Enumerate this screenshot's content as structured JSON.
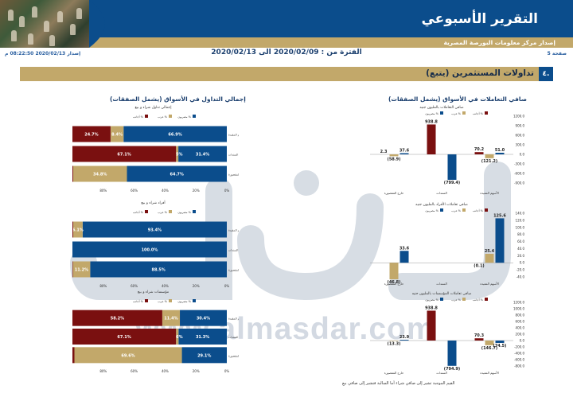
{
  "header": {
    "title": "التقرير الأسبوعي",
    "subtitle": "إصدار مركز معلومات البورصة المصرية",
    "page": "صفحة 5",
    "issue": "إصدار 2020/02/13 08:22:50 م",
    "period": "الفترة من : 2020/02/09 الى 2020/02/13"
  },
  "section": {
    "number": "٤.",
    "title": "تداولات المستثمرين (يتبع)"
  },
  "right_column_title": "صافي التعاملات في الأسواق (يشمل الصفقات)",
  "left_column_title": "إجمالي التداول في الأسواق (يشمل الصفقات)",
  "watermark": {
    "url": "www.almasdar.com"
  },
  "footnote": "القيم الموجبة تشير إلى صافي شراء أما السالبة فتشير إلى صافي بيع",
  "colors": {
    "egyptian": "#0b4d8c",
    "arab": "#c2a86a",
    "foreign": "#7a1010"
  },
  "chart_data": [
    {
      "type": "bar",
      "title": "إجمالي تداول شراء و بيع",
      "orientation": "horizontal-stacked",
      "legend": [
        "أجانب %",
        "عرب %",
        "مصريون %"
      ],
      "categories": [
        "الأسهم المقيدة",
        "السندات",
        "خارج المقصورة"
      ],
      "series": [
        {
          "name": "مصريون %",
          "values": [
            66.9,
            31.4,
            64.7
          ]
        },
        {
          "name": "عرب %",
          "values": [
            8.4,
            1.5,
            34.8
          ]
        },
        {
          "name": "أجانب %",
          "values": [
            24.7,
            67.1,
            0.5
          ]
        }
      ],
      "labels": [
        [
          "66.9%",
          "8.4%",
          "24.7%"
        ],
        [
          "31.4%",
          "1.5%",
          "67.1%"
        ],
        [
          "64.7%",
          "34.8%",
          ""
        ]
      ],
      "xticks": [
        "0%",
        "20%",
        "40%",
        "60%",
        "80%"
      ]
    },
    {
      "type": "bar",
      "title": "أفراد شراء و بيع",
      "orientation": "horizontal-stacked",
      "legend": [
        "أجانب %",
        "عرب %",
        "مصريون %"
      ],
      "categories": [
        "الأسهم المقيدة",
        "السندات",
        "خارج المقصورة"
      ],
      "series": [
        {
          "name": "مصريون %",
          "values": [
            93.4,
            100.0,
            88.5
          ]
        },
        {
          "name": "عرب %",
          "values": [
            6.1,
            0,
            11.2
          ]
        },
        {
          "name": "أجانب %",
          "values": [
            0.5,
            0,
            0.3
          ]
        }
      ],
      "labels": [
        [
          "93.4%",
          "6.1%",
          ""
        ],
        [
          "100.0%",
          "",
          ""
        ],
        [
          "88.5%",
          "11.2%",
          ""
        ]
      ],
      "xticks": [
        "0%",
        "20%",
        "40%",
        "60%",
        "80%"
      ]
    },
    {
      "type": "bar",
      "title": "مؤسسات شراء و بيع",
      "orientation": "horizontal-stacked",
      "legend": [
        "أجانب %",
        "عرب %",
        "مصريون %"
      ],
      "categories": [
        "الأسهم المقيدة",
        "السندات",
        "خارج المقصورة"
      ],
      "series": [
        {
          "name": "مصريون %",
          "values": [
            30.4,
            31.3,
            29.1
          ]
        },
        {
          "name": "عرب %",
          "values": [
            11.4,
            1.6,
            69.6
          ]
        },
        {
          "name": "أجانب %",
          "values": [
            58.2,
            67.1,
            1.3
          ]
        }
      ],
      "labels": [
        [
          "30.4%",
          "11.4%",
          "58.2%"
        ],
        [
          "31.3%",
          "1.6%",
          "67.1%"
        ],
        [
          "29.1%",
          "69.6%",
          ""
        ]
      ],
      "xticks": [
        "0%",
        "20%",
        "40%",
        "60%",
        "80%"
      ]
    },
    {
      "type": "bar",
      "title": "صافي التعاملات بالمليون جنيه",
      "legend": [
        "مصريون %",
        "عرب %",
        "أجانب %"
      ],
      "categories": [
        "خارج المقصورة",
        "السندات",
        "الأسهم المقيدة"
      ],
      "series": [
        {
          "name": "مصريون",
          "values": [
            37.6,
            -799.4,
            51.0
          ]
        },
        {
          "name": "عرب",
          "values": [
            -58.9,
            0,
            -121.2
          ]
        },
        {
          "name": "أجانب",
          "values": [
            2.3,
            938.8,
            70.2
          ]
        }
      ],
      "ylim": [
        -1000,
        1200
      ],
      "yticks": [
        1200,
        900,
        600,
        300,
        0,
        -300,
        -600,
        -900
      ]
    },
    {
      "type": "bar",
      "title": "صافي تعاملات الأفراد بالمليون جنيه",
      "legend": [
        "مصريون %",
        "عرب %",
        "أجانب %"
      ],
      "categories": [
        "خارج المقصورة",
        "السندات",
        "الأسهم المقيدة"
      ],
      "series": [
        {
          "name": "مصريون",
          "values": [
            33.6,
            0,
            125.6
          ]
        },
        {
          "name": "عرب",
          "values": [
            -46.8,
            0,
            25.4
          ]
        },
        {
          "name": "أجانب",
          "values": [
            0,
            0,
            -0.1
          ]
        }
      ],
      "ylim": [
        -40,
        140
      ],
      "yticks": [
        140,
        120,
        100,
        80,
        60,
        40,
        20,
        0,
        -20,
        -40
      ]
    },
    {
      "type": "bar",
      "title": "صافي تعاملات المؤسسات بالمليون جنيه",
      "legend": [
        "مصريون %",
        "عرب %",
        "أجانب %"
      ],
      "categories": [
        "خارج المقصورة",
        "السندات",
        "الأسهم المقيدة"
      ],
      "series": [
        {
          "name": "مصريون",
          "values": [
            23.9,
            -794.9,
            -74.5
          ]
        },
        {
          "name": "عرب",
          "values": [
            -13.3,
            0,
            -146.7
          ]
        },
        {
          "name": "أجانب",
          "values": [
            0,
            938.8,
            70.3
          ]
        }
      ],
      "ylim": [
        -800,
        1200
      ],
      "yticks": [
        1200,
        1000,
        800,
        600,
        400,
        200,
        0,
        -200,
        -400,
        -600,
        -800
      ]
    }
  ]
}
